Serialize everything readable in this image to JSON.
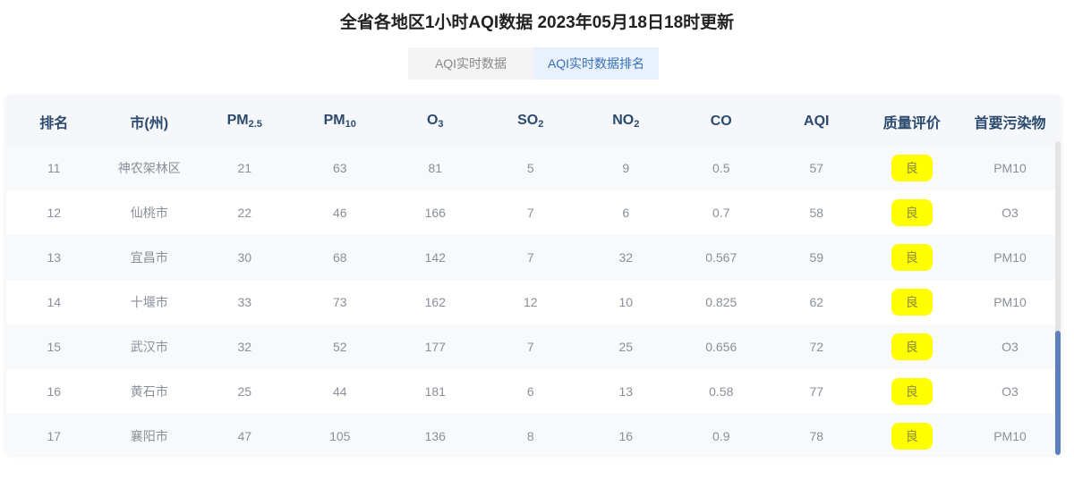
{
  "title": "全省各地区1小时AQI数据 2023年05月18日18时更新",
  "tabs": [
    {
      "label": "AQI实时数据",
      "active": false
    },
    {
      "label": "AQI实时数据排名",
      "active": true
    }
  ],
  "columns": [
    "排名",
    "市(州)",
    "PM2.5",
    "PM10",
    "O3",
    "SO2",
    "NO2",
    "CO",
    "AQI",
    "质量评价",
    "首要污染物"
  ],
  "rows": [
    [
      "11",
      "神农架林区",
      "21",
      "63",
      "81",
      "5",
      "9",
      "0.5",
      "57",
      "良",
      "PM10"
    ],
    [
      "12",
      "仙桃市",
      "22",
      "46",
      "166",
      "7",
      "6",
      "0.7",
      "58",
      "良",
      "O3"
    ],
    [
      "13",
      "宜昌市",
      "30",
      "68",
      "142",
      "7",
      "32",
      "0.567",
      "59",
      "良",
      "PM10"
    ],
    [
      "14",
      "十堰市",
      "33",
      "73",
      "162",
      "12",
      "10",
      "0.825",
      "62",
      "良",
      "PM10"
    ],
    [
      "15",
      "武汉市",
      "32",
      "52",
      "177",
      "7",
      "25",
      "0.656",
      "72",
      "良",
      "O3"
    ],
    [
      "16",
      "黄石市",
      "25",
      "44",
      "181",
      "6",
      "13",
      "0.58",
      "77",
      "良",
      "O3"
    ],
    [
      "17",
      "襄阳市",
      "47",
      "105",
      "136",
      "8",
      "16",
      "0.9",
      "78",
      "良",
      "PM10"
    ]
  ],
  "colors": {
    "badge": "#ffff00",
    "scrollbar": "#5b7fc0",
    "header_text": "#2c4a6e",
    "active_tab_text": "#3a6fb8"
  }
}
